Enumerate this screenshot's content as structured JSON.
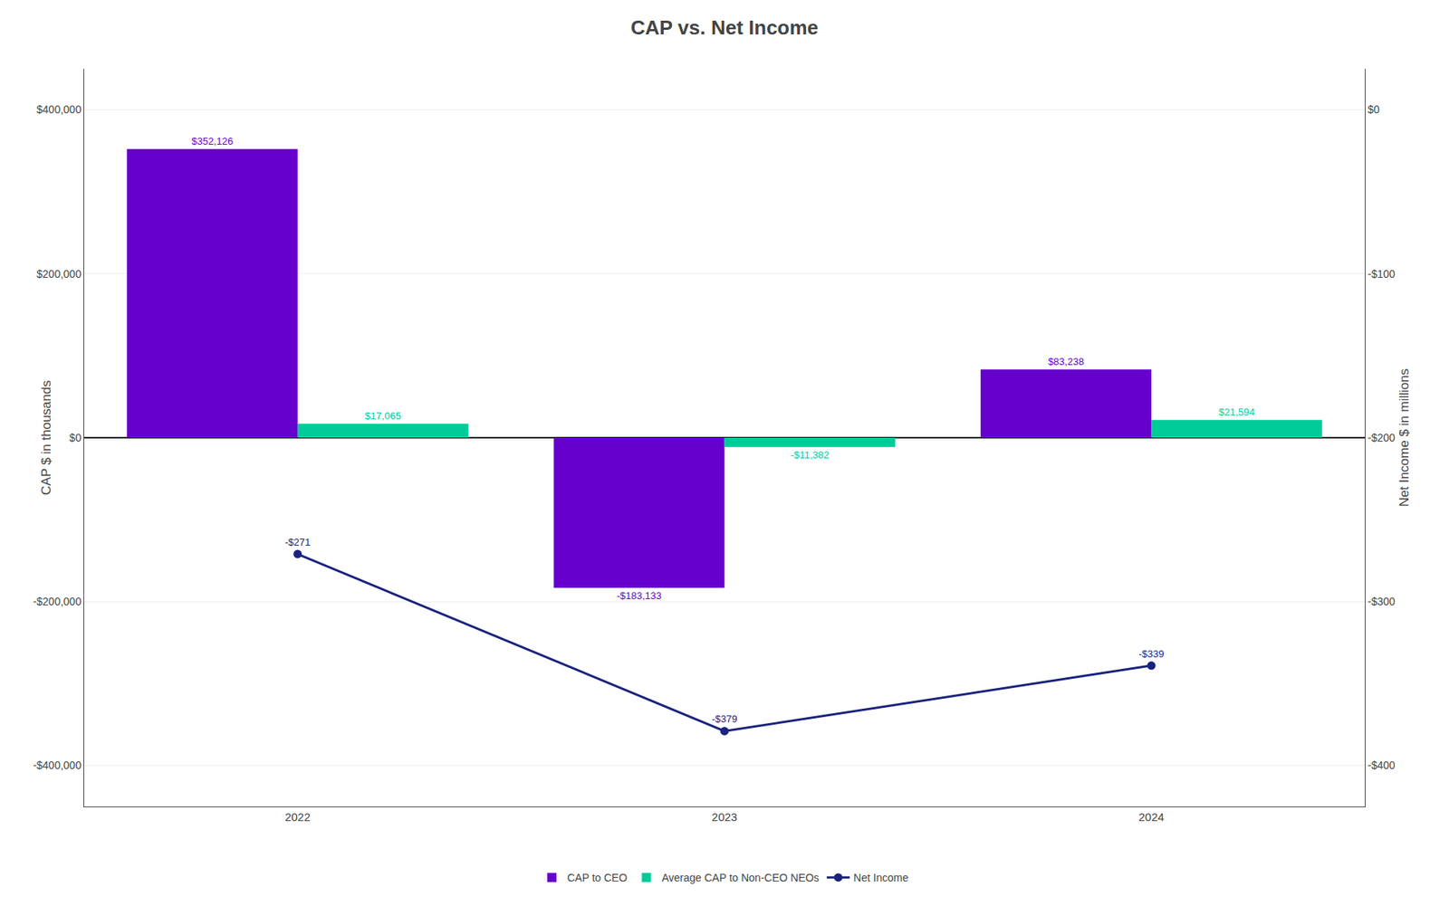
{
  "chart_data": {
    "type": "bar",
    "title": "CAP vs. Net Income",
    "categories": [
      "2022",
      "2023",
      "2024"
    ],
    "series": [
      {
        "name": "CAP to CEO",
        "type": "bar",
        "color": "#6600cc",
        "values": [
          352126,
          -183133,
          83238
        ],
        "value_labels": [
          "$352,126",
          "-$183,133",
          "$83,238"
        ]
      },
      {
        "name": "Average CAP to Non-CEO NEOs",
        "type": "bar",
        "color": "#00cc99",
        "values": [
          17065,
          -11382,
          21594
        ],
        "value_labels": [
          "$17,065",
          "-$11,382",
          "$21,594"
        ]
      },
      {
        "name": "Net Income",
        "type": "line",
        "axis": "y2",
        "color": "#1a237e",
        "marker": "circle",
        "values": [
          -271,
          -379,
          -339
        ],
        "value_labels": [
          "-$271",
          "-$379",
          "-$339"
        ]
      }
    ],
    "ylabel": "CAP $ in thousands",
    "y2label": "Net Income $ in millions",
    "ylim": [
      -450000,
      450000
    ],
    "yticks": [
      {
        "value": -400000,
        "label": "-$400,000"
      },
      {
        "value": -200000,
        "label": "-$200,000"
      },
      {
        "value": 0,
        "label": "$0"
      },
      {
        "value": 200000,
        "label": "$200,000"
      },
      {
        "value": 400000,
        "label": "$400,000"
      }
    ],
    "y2lim": [
      -425,
      25
    ],
    "y2ticks": [
      {
        "value": -400,
        "label": "-$400"
      },
      {
        "value": -300,
        "label": "-$300"
      },
      {
        "value": -200,
        "label": "-$200"
      },
      {
        "value": -100,
        "label": "-$100"
      },
      {
        "value": 0,
        "label": "$0"
      }
    ],
    "grid": true,
    "legend": "bottom",
    "data_labels": true
  }
}
